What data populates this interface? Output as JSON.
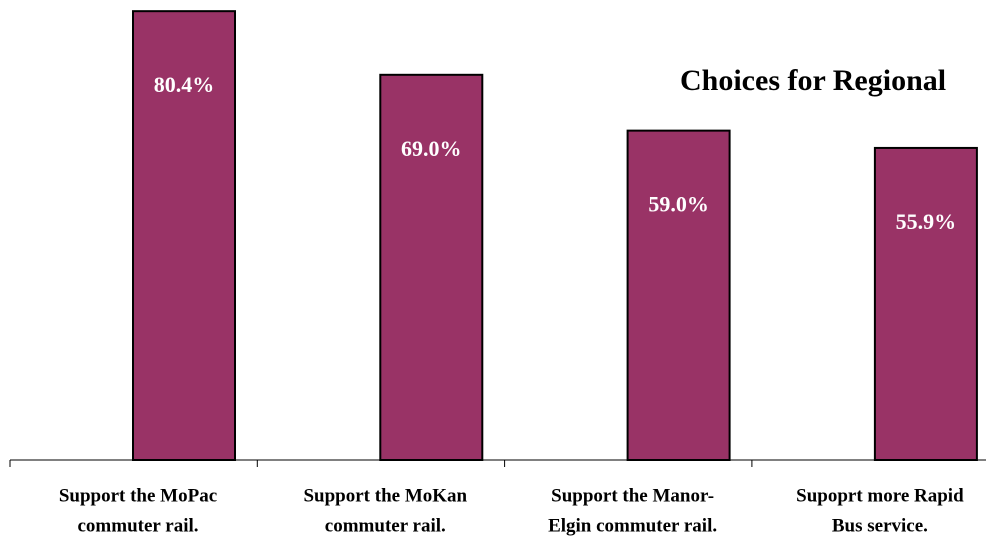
{
  "chart_data": {
    "type": "bar",
    "title": "Choices for Regional",
    "categories": [
      [
        "Support the MoPac",
        "commuter rail."
      ],
      [
        "Support the MoKan",
        "commuter rail."
      ],
      [
        "Support the Manor-",
        "Elgin commuter rail."
      ],
      [
        "Supoprt more Rapid",
        "Bus service."
      ]
    ],
    "values": [
      80.4,
      69.0,
      59.0,
      55.9
    ],
    "value_labels": [
      "80.4%",
      "69.0%",
      "59.0%",
      "55.9%"
    ],
    "color": "#993366",
    "ylim": [
      0,
      82.4
    ]
  }
}
